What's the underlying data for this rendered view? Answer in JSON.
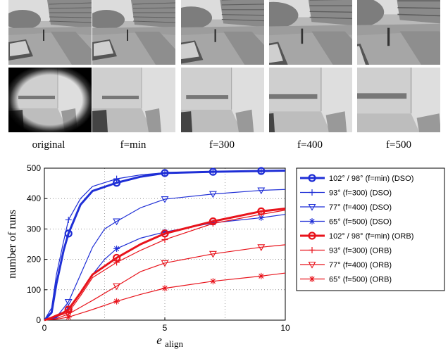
{
  "figure": {
    "column_labels": [
      "original",
      "f=min",
      "f=300",
      "f=400",
      "f=500"
    ],
    "rows": [
      "outdoor-scene",
      "indoor-scene"
    ]
  },
  "chart_data": {
    "type": "line",
    "title": "",
    "xlabel_main": "e",
    "xlabel_sub": "align",
    "ylabel": "number of runs",
    "xlim": [
      0,
      10
    ],
    "ylim": [
      0,
      500
    ],
    "xticks": [
      0,
      5,
      10
    ],
    "yticks": [
      0,
      100,
      200,
      300,
      400,
      500
    ],
    "grid": true,
    "legend_position": "right",
    "series": [
      {
        "name": "102° / 98° (f=min) (DSO)",
        "color": "#1f2fd6",
        "width": 3,
        "marker": "circle",
        "x": [
          0,
          0.3,
          0.5,
          0.8,
          1,
          1.5,
          2,
          3,
          4,
          5,
          7,
          10
        ],
        "y": [
          0,
          25,
          120,
          230,
          285,
          380,
          425,
          452,
          472,
          484,
          488,
          492
        ]
      },
      {
        "name": "93° (f=300) (DSO)",
        "color": "#1f2fd6",
        "width": 1.2,
        "marker": "plus",
        "x": [
          0,
          0.3,
          0.5,
          0.8,
          1,
          1.5,
          2,
          3,
          4,
          5,
          7,
          10
        ],
        "y": [
          0,
          40,
          150,
          260,
          330,
          400,
          440,
          465,
          478,
          485,
          490,
          492
        ]
      },
      {
        "name": "77° (f=400) (DSO)",
        "color": "#1f2fd6",
        "width": 1.2,
        "marker": "triangle",
        "x": [
          0,
          0.5,
          1,
          1.5,
          2,
          2.5,
          3,
          4,
          5,
          7,
          9,
          10
        ],
        "y": [
          0,
          10,
          60,
          150,
          240,
          300,
          325,
          370,
          398,
          415,
          427,
          430
        ]
      },
      {
        "name": "65° (f=500) (DSO)",
        "color": "#1f2fd6",
        "width": 1.2,
        "marker": "star",
        "x": [
          0,
          0.5,
          1,
          1.5,
          2,
          2.5,
          3,
          4,
          5,
          7,
          9,
          10
        ],
        "y": [
          0,
          8,
          40,
          90,
          150,
          200,
          235,
          270,
          290,
          320,
          337,
          348
        ]
      },
      {
        "name": "102° / 98° (f=min) (ORB)",
        "color": "#e8131b",
        "width": 3,
        "marker": "circle",
        "x": [
          0,
          0.3,
          0.5,
          0.8,
          1,
          1.5,
          2,
          3,
          4,
          5,
          7,
          9,
          10
        ],
        "y": [
          0,
          8,
          15,
          25,
          35,
          90,
          150,
          205,
          250,
          285,
          325,
          358,
          367
        ]
      },
      {
        "name": "93° (f=300) (ORB)",
        "color": "#e8131b",
        "width": 1.2,
        "marker": "plus",
        "x": [
          0,
          0.5,
          1,
          1.5,
          2,
          3,
          4,
          5,
          7,
          9,
          10
        ],
        "y": [
          0,
          12,
          25,
          80,
          140,
          190,
          230,
          265,
          318,
          348,
          362
        ]
      },
      {
        "name": "77° (f=400) (ORB)",
        "color": "#e8131b",
        "width": 1.2,
        "marker": "triangle",
        "x": [
          0,
          0.5,
          1,
          2,
          3,
          4,
          5,
          7,
          9,
          10
        ],
        "y": [
          0,
          5,
          20,
          65,
          112,
          160,
          188,
          218,
          240,
          248
        ]
      },
      {
        "name": "65° (f=500) (ORB)",
        "color": "#e8131b",
        "width": 1.2,
        "marker": "star",
        "x": [
          0,
          0.5,
          1,
          2,
          3,
          4,
          5,
          7,
          9,
          10
        ],
        "y": [
          0,
          3,
          10,
          35,
          62,
          85,
          105,
          128,
          145,
          155
        ]
      }
    ]
  }
}
